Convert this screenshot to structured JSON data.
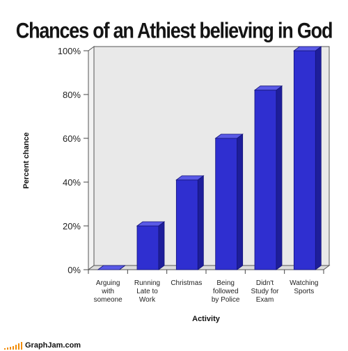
{
  "chart_data": {
    "type": "bar",
    "title": "Chances of an Athiest believing in God",
    "xlabel": "Activity",
    "ylabel": "Percent chance",
    "ylim": [
      0,
      100
    ],
    "yticks": [
      "0%",
      "20%",
      "40%",
      "60%",
      "80%",
      "100%"
    ],
    "categories": [
      [
        "Arguing",
        "with",
        "someone"
      ],
      [
        "Running",
        "Late to",
        "Work"
      ],
      [
        "Christmas"
      ],
      [
        "Being",
        "followed",
        "by Police"
      ],
      [
        "Didn't",
        "Study for",
        "Exam"
      ],
      [
        "Watching",
        "Sports"
      ]
    ],
    "values": [
      0,
      20,
      41,
      60,
      82,
      100
    ],
    "grid": false,
    "colors": {
      "bar_front": "#2f2fd0",
      "bar_side": "#1e1e9a",
      "bar_top": "#5a5ae6",
      "wall": "#e9e9e9"
    }
  },
  "footer": {
    "site": "GraphJam.com",
    "accent": "#f28c00"
  }
}
